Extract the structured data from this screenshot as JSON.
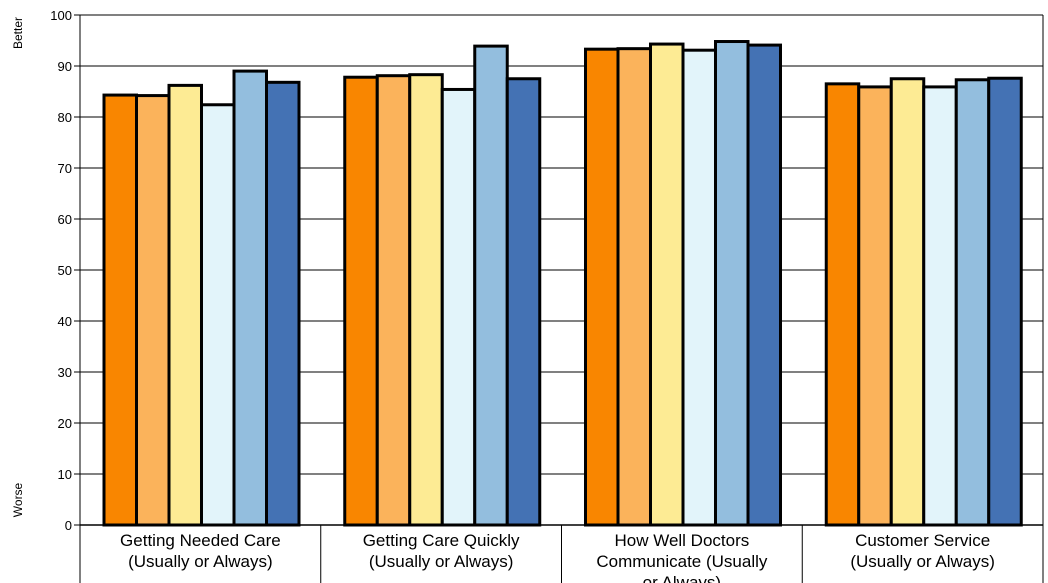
{
  "chart_data": {
    "type": "bar",
    "categories": [
      [
        "Getting Needed Care",
        "(Usually or Always)"
      ],
      [
        "Getting Care Quickly",
        "(Usually or Always)"
      ],
      [
        "How Well Doctors",
        "Communicate (Usually",
        "or Always)"
      ],
      [
        "Customer Service",
        "(Usually or Always)"
      ]
    ],
    "series": [
      {
        "color": "#F98600",
        "values": [
          84.3,
          87.8,
          93.3,
          86.5
        ]
      },
      {
        "color": "#FBB35B",
        "values": [
          84.2,
          88.1,
          93.4,
          85.9
        ]
      },
      {
        "color": "#FDEB94",
        "values": [
          86.2,
          88.3,
          94.3,
          87.5
        ]
      },
      {
        "color": "#E2F4FA",
        "values": [
          82.4,
          85.4,
          93.1,
          85.9
        ]
      },
      {
        "color": "#93BEDE",
        "values": [
          89.0,
          93.9,
          94.8,
          87.3
        ]
      },
      {
        "color": "#4472B4",
        "values": [
          86.8,
          87.5,
          94.1,
          87.6
        ]
      }
    ],
    "yticks": [
      0,
      10,
      20,
      30,
      40,
      50,
      60,
      70,
      80,
      90,
      100
    ],
    "ylim": [
      0,
      100
    ],
    "ylabel_top": "Better",
    "ylabel_bottom": "Worse",
    "grid": true,
    "legend": "none"
  }
}
